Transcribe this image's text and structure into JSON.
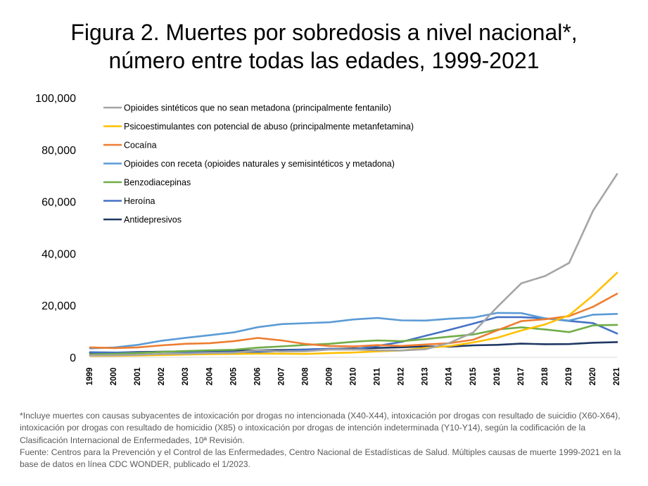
{
  "title_line1": "Figura 2. Muertes por sobredosis a nivel nacional*,",
  "title_line2": "número entre todas las edades, 1999-2021",
  "footnote_1": "*Incluye muertes con causas subyacentes de intoxicación por drogas no intencionada (X40-X44), intoxicación por drogas con resultado de suicidio (X60-X64), intoxicación por drogas con resultado de homicidio (X85) o intoxicación por drogas de intención indeterminada (Y10-Y14), según la codificación de la Clasificación Internacional de Enfermedades, 10ª Revisión.",
  "footnote_2": "Fuente: Centros para la Prevención y el Control de las Enfermedades, Centro Nacional de Estadísticas de Salud. Múltiples causas de muerte 1999-2021 en la base de datos en línea CDC WONDER, publicado el 1/2023.",
  "chart_data": {
    "type": "line",
    "title": "Figura 2. Muertes por sobredosis a nivel nacional*, número entre todas las edades, 1999-2021",
    "x": [
      "1999",
      "2000",
      "2001",
      "2002",
      "2003",
      "2004",
      "2005",
      "2006",
      "2007",
      "2008",
      "2009",
      "2010",
      "2011",
      "2012",
      "2013",
      "2014",
      "2015",
      "2016",
      "2017",
      "2018",
      "2019",
      "2020",
      "2021"
    ],
    "ylim": [
      0,
      100000
    ],
    "yticks": [
      0,
      20000,
      40000,
      60000,
      80000,
      100000
    ],
    "ytick_labels": [
      "0",
      "20,000",
      "40,000",
      "60,000",
      "80,000",
      "100,000"
    ],
    "grid": false,
    "legend_position": "top-left",
    "series": [
      {
        "name": "Opioides sintéticos que no sean metadona (principalmente fentanilo)",
        "color": "#a5a5a5",
        "values": [
          730,
          780,
          960,
          1300,
          1400,
          1660,
          1740,
          2700,
          2210,
          2300,
          2950,
          3010,
          2670,
          2630,
          3100,
          5540,
          9580,
          19410,
          28470,
          31340,
          36360,
          56520,
          70600
        ]
      },
      {
        "name": "Psicoestimulantes con potencial de abuso (principalmente metanfetamina)",
        "color": "#ffc000",
        "values": [
          550,
          580,
          680,
          870,
          1050,
          1200,
          1300,
          1400,
          1380,
          1300,
          1600,
          1850,
          2270,
          2640,
          3630,
          4300,
          5720,
          7540,
          10330,
          12680,
          16170,
          23840,
          32540
        ]
      },
      {
        "name": "Cocaína",
        "color": "#ed7d31",
        "values": [
          3820,
          3540,
          3830,
          4600,
          5200,
          5440,
          6200,
          7450,
          6500,
          5130,
          4350,
          4180,
          4680,
          4400,
          4940,
          5420,
          6780,
          10380,
          13940,
          14670,
          15880,
          19450,
          24490
        ]
      },
      {
        "name": "Opioides con receta (opioides naturales y semisintéticos y metadona)",
        "color": "#5b9bd5",
        "values": [
          3440,
          3780,
          4800,
          6400,
          7500,
          8500,
          9600,
          11600,
          12800,
          13150,
          13500,
          14580,
          15140,
          14240,
          14150,
          14840,
          15280,
          17090,
          17030,
          14980,
          14140,
          16420,
          16710
        ]
      },
      {
        "name": "Benzodiacepinas",
        "color": "#70ad47",
        "values": [
          1140,
          1300,
          1600,
          2100,
          2400,
          2700,
          2900,
          3700,
          4200,
          4760,
          5210,
          5990,
          6500,
          6210,
          6980,
          7950,
          8790,
          10680,
          11540,
          10720,
          9710,
          12290,
          12500
        ]
      },
      {
        "name": "Heroína",
        "color": "#4472c4",
        "values": [
          1960,
          1840,
          1780,
          2090,
          2080,
          1880,
          2010,
          2090,
          2400,
          3040,
          3280,
          3040,
          4400,
          5930,
          8260,
          10570,
          12990,
          15470,
          15480,
          14990,
          14020,
          13170,
          9170
        ]
      },
      {
        "name": "Antidepresivos",
        "color": "#1f3864",
        "values": [
          1750,
          1800,
          2000,
          2150,
          2300,
          2350,
          2400,
          2700,
          2800,
          3000,
          3200,
          3400,
          3600,
          3850,
          4200,
          4100,
          4600,
          4800,
          5250,
          5050,
          5100,
          5600,
          5860
        ]
      }
    ]
  }
}
